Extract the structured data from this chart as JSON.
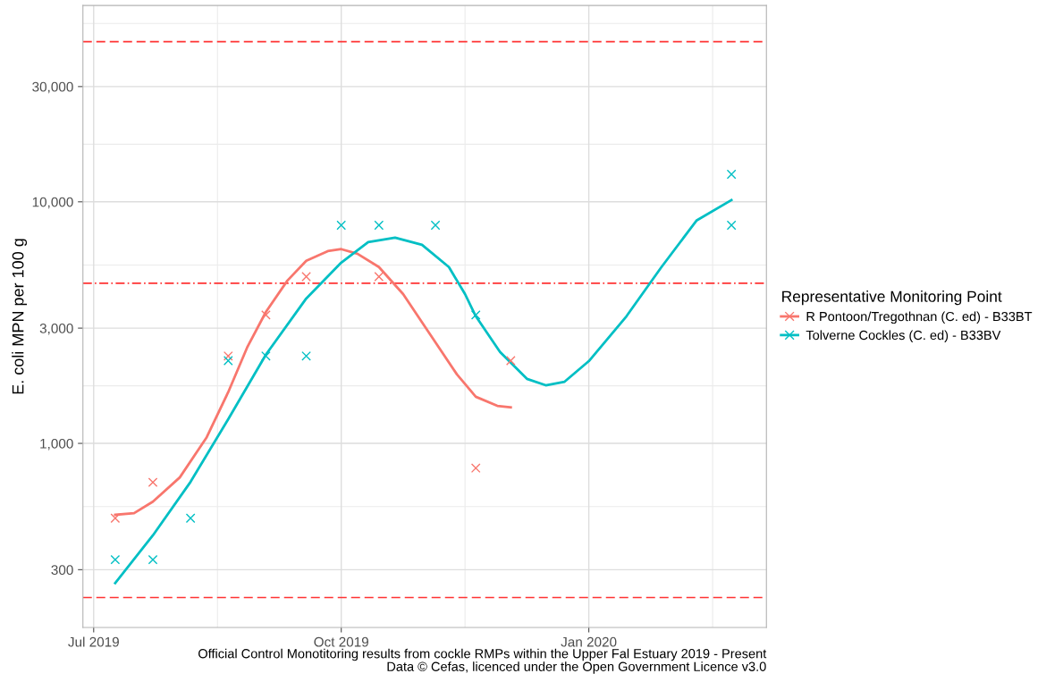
{
  "chart_data": {
    "type": "scatter",
    "ylabel": "E. coli MPN per 100 g",
    "legend_title": "Representative Monitoring Point",
    "legend": "right",
    "grid": true,
    "log": "y",
    "xlim": [
      "2019-06-27",
      "2020-03-07"
    ],
    "xticks": [
      {
        "value": "2019-07-01",
        "label": "Jul 2019"
      },
      {
        "value": "2019-10-01",
        "label": "Oct 2019"
      },
      {
        "value": "2020-01-01",
        "label": "Jan 2020"
      }
    ],
    "ylim": [
      173,
      65000
    ],
    "yticks": [
      {
        "value": 300,
        "label": "300"
      },
      {
        "value": 1000,
        "label": "1,000"
      },
      {
        "value": 3000,
        "label": "3,000"
      },
      {
        "value": 10000,
        "label": "10,000"
      },
      {
        "value": 30000,
        "label": "30,000"
      }
    ],
    "series": [
      {
        "name": "R Pontoon/Tregothnan (C. ed) - B33BT",
        "marker": "cross",
        "color": "#f8766d",
        "x": [
          "2019-07-09",
          "2019-07-23",
          "2019-08-20",
          "2019-09-03",
          "2019-09-18",
          "2019-10-15",
          "2019-11-20",
          "2019-12-03"
        ],
        "values": [
          490,
          690,
          2300,
          3400,
          4900,
          4900,
          790,
          2200
        ]
      },
      {
        "name": "Tolverne Cockles (C. ed) - B33BV",
        "marker": "cross",
        "color": "#00bfc4",
        "x": [
          "2019-07-09",
          "2019-07-23",
          "2019-08-06",
          "2019-08-20",
          "2019-09-03",
          "2019-09-18",
          "2019-10-01",
          "2019-10-15",
          "2019-11-05",
          "2019-11-20",
          "2020-02-23",
          "2020-02-23"
        ],
        "values": [
          330,
          330,
          490,
          2200,
          2300,
          2300,
          8000,
          8000,
          8000,
          3400,
          13000,
          8000
        ]
      },
      {
        "type": "line",
        "color": "#f8766d",
        "x": [
          "2019-07-09",
          "2019-07-16",
          "2019-07-23",
          "2019-08-02",
          "2019-08-12",
          "2019-08-20",
          "2019-08-27",
          "2019-09-03",
          "2019-09-11",
          "2019-09-18",
          "2019-09-26",
          "2019-10-01",
          "2019-10-07",
          "2019-10-15",
          "2019-10-24",
          "2019-11-03",
          "2019-11-13",
          "2019-11-20",
          "2019-11-28",
          "2019-12-03"
        ],
        "values": [
          506,
          514,
          574,
          723,
          1060,
          1630,
          2490,
          3500,
          4720,
          5700,
          6250,
          6370,
          6100,
          5370,
          4150,
          2830,
          1930,
          1560,
          1430,
          1410
        ]
      },
      {
        "type": "line",
        "color": "#00bfc4",
        "x": [
          "2019-07-09",
          "2019-07-23",
          "2019-08-06",
          "2019-08-20",
          "2019-09-03",
          "2019-09-18",
          "2019-10-01",
          "2019-10-11",
          "2019-10-21",
          "2019-10-31",
          "2019-11-10",
          "2019-11-16",
          "2019-11-20",
          "2019-11-29",
          "2019-12-09",
          "2019-12-16",
          "2019-12-23",
          "2020-01-01",
          "2020-01-15",
          "2020-01-28",
          "2020-02-10",
          "2020-02-23"
        ],
        "values": [
          264,
          416,
          693,
          1260,
          2330,
          3980,
          5600,
          6810,
          7110,
          6640,
          5370,
          4150,
          3360,
          2390,
          1850,
          1740,
          1800,
          2190,
          3360,
          5370,
          8360,
          10170
        ]
      }
    ],
    "ref_lines": [
      {
        "axis": "y",
        "value": 46000,
        "color": "#ff3333",
        "line_style": "dashed"
      },
      {
        "axis": "y",
        "value": 4600,
        "color": "#ff3333",
        "line_style": "dashdot"
      },
      {
        "axis": "y",
        "value": 230,
        "color": "#ff3333",
        "line_style": "dashed"
      }
    ],
    "annotations": [
      "Official Control Monotitoring results from cockle RMPs within the Upper Fal Estuary 2019 - Present",
      "Data © Cefas, licenced under the Open Government Licence v3.0"
    ]
  }
}
